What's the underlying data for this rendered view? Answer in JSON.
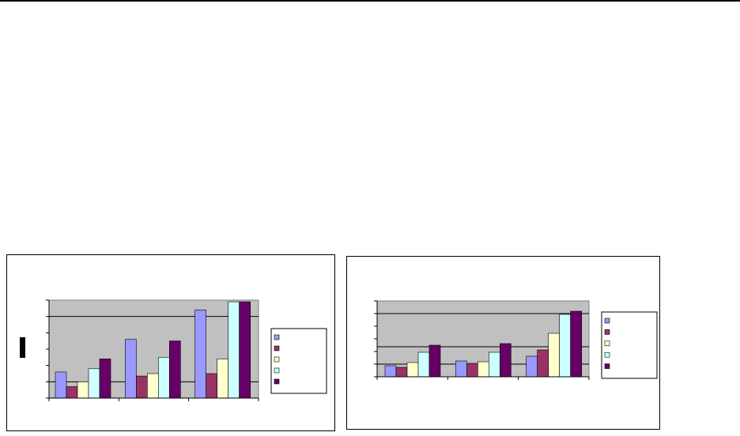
{
  "colors": {
    "plot_background": "#c0c0c0",
    "gridline": "#000000",
    "series": [
      "#9999ff",
      "#993366",
      "#ffffcc",
      "#ccffff",
      "#660066"
    ]
  },
  "chart_data": [
    {
      "type": "bar",
      "categories": [
        "",
        "",
        ""
      ],
      "series": [
        {
          "values": [
            32,
            72,
            108
          ]
        },
        {
          "values": [
            14,
            27,
            30
          ]
        },
        {
          "values": [
            20,
            30,
            48
          ]
        },
        {
          "values": [
            36,
            50,
            118
          ]
        },
        {
          "values": [
            48,
            70,
            118
          ]
        }
      ],
      "ylim": [
        0,
        120
      ],
      "yticks": [
        0,
        20,
        40,
        60,
        80,
        100,
        120
      ],
      "gridlines": [
        20,
        100
      ],
      "grid": true,
      "legend": "right",
      "title": "",
      "xlabel": "",
      "ylabel": ""
    },
    {
      "type": "bar",
      "categories": [
        "",
        "",
        ""
      ],
      "series": [
        {
          "values": [
            14,
            20,
            26
          ]
        },
        {
          "values": [
            12,
            17,
            34
          ]
        },
        {
          "values": [
            18,
            19,
            55
          ]
        },
        {
          "values": [
            31,
            31,
            79
          ]
        },
        {
          "values": [
            40,
            42,
            83
          ]
        }
      ],
      "ylim": [
        0,
        96
      ],
      "yticks": [
        0,
        16,
        32,
        48,
        64,
        80,
        96
      ],
      "gridlines": [
        16,
        38,
        80
      ],
      "grid": true,
      "legend": "right",
      "title": "",
      "xlabel": "",
      "ylabel": ""
    }
  ]
}
